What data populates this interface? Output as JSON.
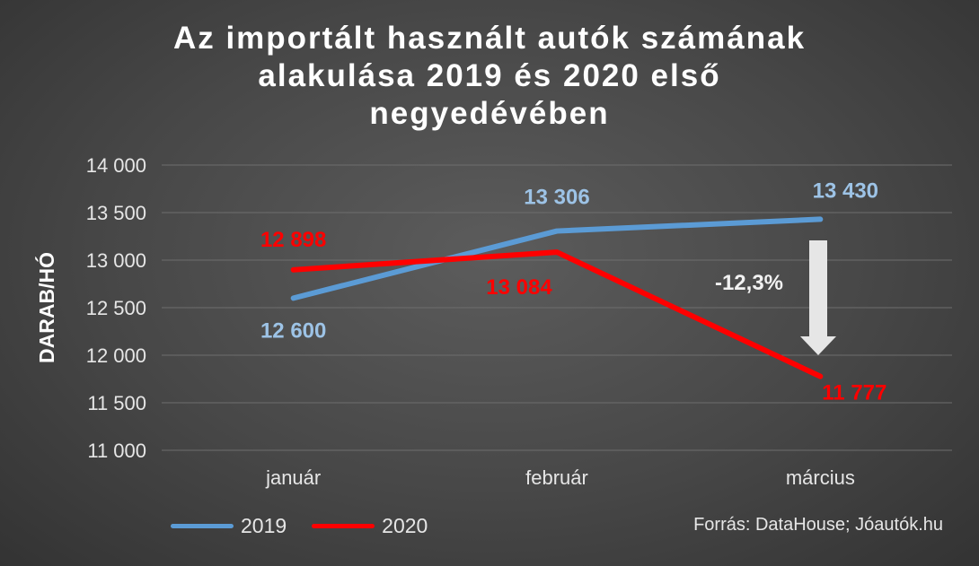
{
  "title_lines": [
    "Az importált használt autók számának",
    "alakulása 2019 és 2020 első",
    "negyedévében"
  ],
  "source": "Forrás: DataHouse; Jóautók.hu",
  "annotation": "-12,3%",
  "colors": {
    "series_2019": "#5b9bd5",
    "series_2020": "#ff0000",
    "label_2019": "#9dc3e6",
    "arrow": "#e6e6e6",
    "grid": "#6e6e6e",
    "text": "#e6e6e6"
  },
  "chart_data": {
    "type": "line",
    "title": "Az importált használt autók számának alakulása 2019 és 2020 első negyedévében",
    "categories": [
      "január",
      "február",
      "március"
    ],
    "series": [
      {
        "name": "2019",
        "values": [
          12600,
          13306,
          13430
        ],
        "labels": [
          "12 600",
          "13 306",
          "13 430"
        ]
      },
      {
        "name": "2020",
        "values": [
          12898,
          13084,
          11777
        ],
        "labels": [
          "12 898",
          "13 084",
          "11 777"
        ]
      }
    ],
    "ylabel": "DARAB/HÓ",
    "xlabel": "",
    "ylim": [
      11000,
      14000
    ],
    "yticks": [
      {
        "value": 11000,
        "label": "11 000"
      },
      {
        "value": 11500,
        "label": "11 500"
      },
      {
        "value": 12000,
        "label": "12 000"
      },
      {
        "value": 12500,
        "label": "12 500"
      },
      {
        "value": 13000,
        "label": "13 000"
      },
      {
        "value": 13500,
        "label": "13 500"
      },
      {
        "value": 14000,
        "label": "14 000"
      }
    ],
    "grid": true,
    "legend_position": "bottom-left"
  }
}
